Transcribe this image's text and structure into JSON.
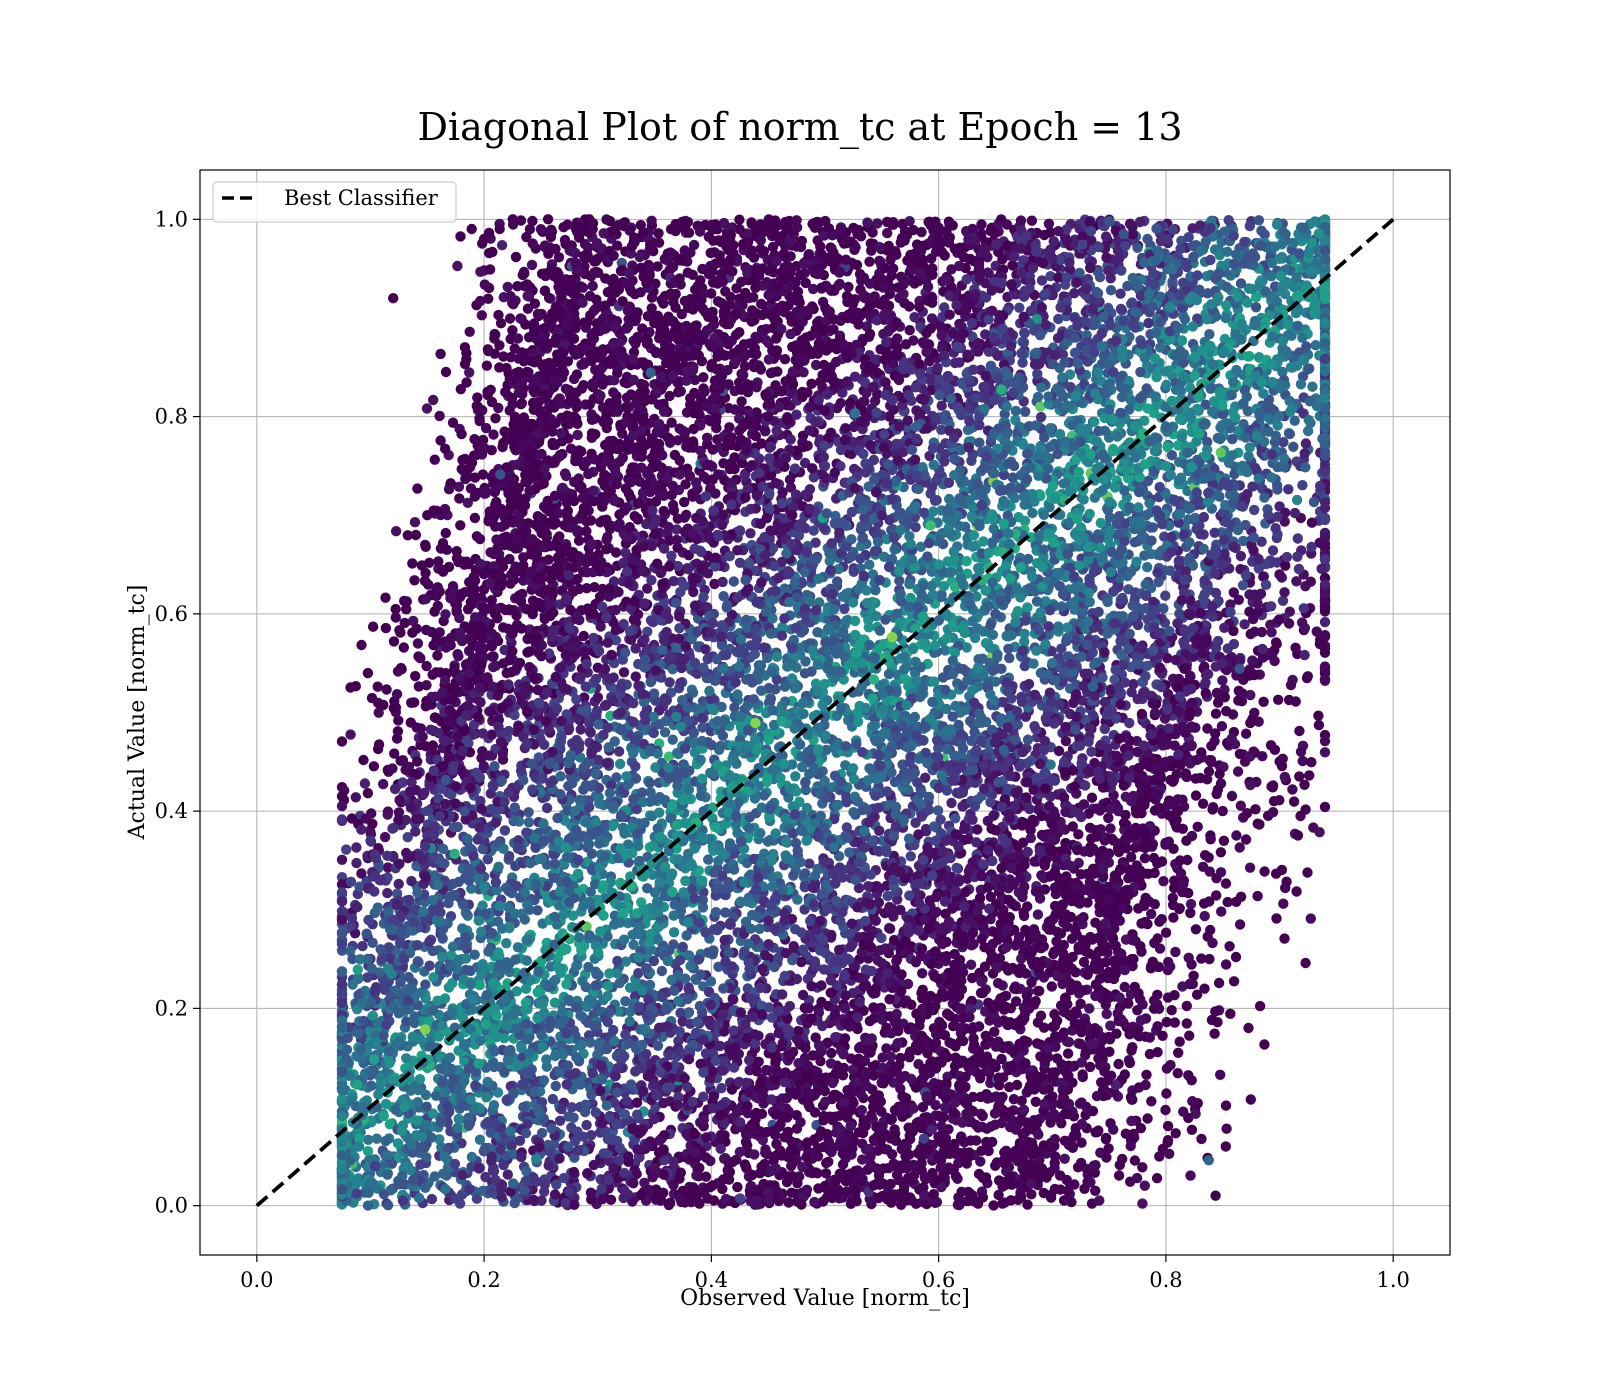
{
  "chart_data": {
    "type": "scatter",
    "title": "Diagonal Plot of norm_tc at Epoch = 13",
    "xlabel": "Observed Value [norm_tc]",
    "ylabel": "Actual Value [norm_tc]",
    "xlim": [
      -0.05,
      1.05
    ],
    "ylim": [
      -0.05,
      1.05
    ],
    "xticks": [
      "0.0",
      "0.2",
      "0.4",
      "0.6",
      "0.8",
      "1.0"
    ],
    "yticks": [
      "0.0",
      "0.2",
      "0.4",
      "0.6",
      "0.8",
      "1.0"
    ],
    "grid": true,
    "legend_position": "top-left",
    "colormap": "viridis",
    "series": [
      {
        "name": "Best Classifier",
        "kind": "line",
        "style": "dashed",
        "color": "#000000",
        "x": [
          0.0,
          1.0
        ],
        "y": [
          0.0,
          1.0
        ]
      }
    ],
    "scatter_sample": {
      "description_points": "Dense cloud of points forming a parallelogram band around the diagonal",
      "x": [
        0.12,
        0.08,
        0.1,
        0.15,
        0.2,
        0.25,
        0.3,
        0.35,
        0.4,
        0.45,
        0.5,
        0.55,
        0.6,
        0.65,
        0.7,
        0.75,
        0.8,
        0.85,
        0.9,
        0.93,
        0.91,
        0.88,
        0.86,
        0.84,
        0.82,
        0.78,
        0.74,
        0.7,
        0.66,
        0.62,
        0.58,
        0.54,
        0.5,
        0.46,
        0.42,
        0.38,
        0.34,
        0.3,
        0.26,
        0.22,
        0.18,
        0.14,
        0.11,
        0.09,
        0.13,
        0.17,
        0.21,
        0.24,
        0.28,
        0.32,
        0.36,
        0.44,
        0.48,
        0.52,
        0.56,
        0.6,
        0.64,
        0.68,
        0.72,
        0.76,
        0.8,
        0.84,
        0.87,
        0.9,
        0.92,
        0.89,
        0.85,
        0.81,
        0.77,
        0.73
      ],
      "y": [
        0.92,
        0.17,
        0.37,
        0.7,
        0.98,
        0.99,
        0.96,
        0.9,
        0.85,
        0.8,
        0.75,
        0.7,
        0.65,
        0.6,
        0.55,
        0.5,
        0.45,
        0.4,
        0.96,
        0.92,
        0.85,
        0.78,
        0.72,
        0.66,
        0.6,
        0.52,
        0.44,
        0.36,
        0.28,
        0.2,
        0.12,
        0.05,
        0.02,
        0.08,
        0.14,
        0.22,
        0.3,
        0.38,
        0.46,
        0.54,
        0.62,
        0.68,
        0.25,
        0.06,
        0.1,
        0.15,
        0.2,
        0.3,
        0.4,
        0.5,
        0.6,
        0.72,
        0.82,
        0.9,
        0.95,
        0.98,
        0.97,
        0.93,
        0.88,
        0.84,
        0.79,
        0.74,
        0.69,
        0.64,
        0.88,
        0.7,
        0.55,
        0.4,
        0.25,
        0.1
      ]
    }
  }
}
